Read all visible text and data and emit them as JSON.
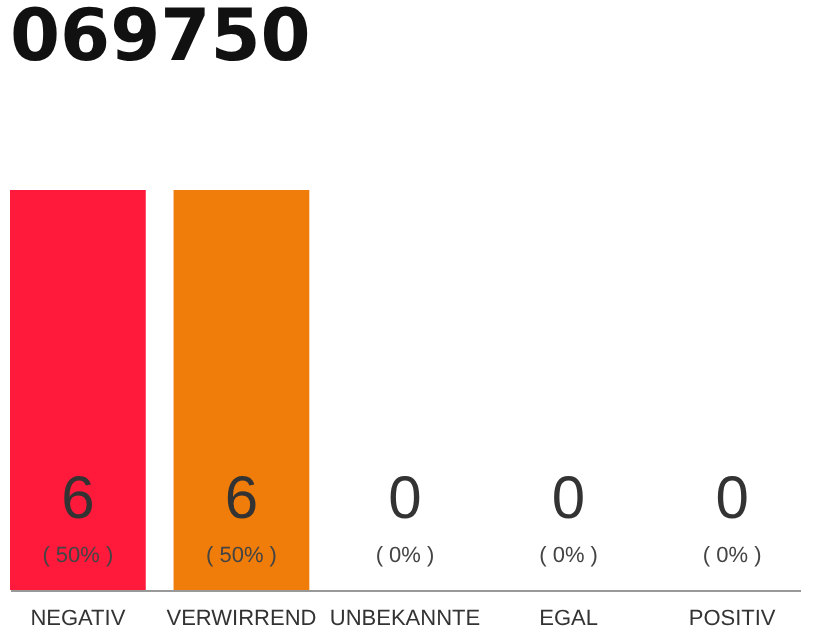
{
  "chart_data": {
    "type": "bar",
    "title": "069750",
    "categories": [
      "NEGATIV",
      "VERWIRREND",
      "UNBEKANNTE",
      "EGAL",
      "POSITIV"
    ],
    "values": [
      6,
      6,
      0,
      0,
      0
    ],
    "colors": [
      "#ff1a3c",
      "#f07d0a",
      "#eeeeee",
      "#eeeeee",
      "#eeeeee"
    ],
    "data_labels": true,
    "annotations": [
      "( 50% )",
      "( 50% )",
      "( 0% )",
      "( 0% )",
      "( 0% )"
    ]
  }
}
